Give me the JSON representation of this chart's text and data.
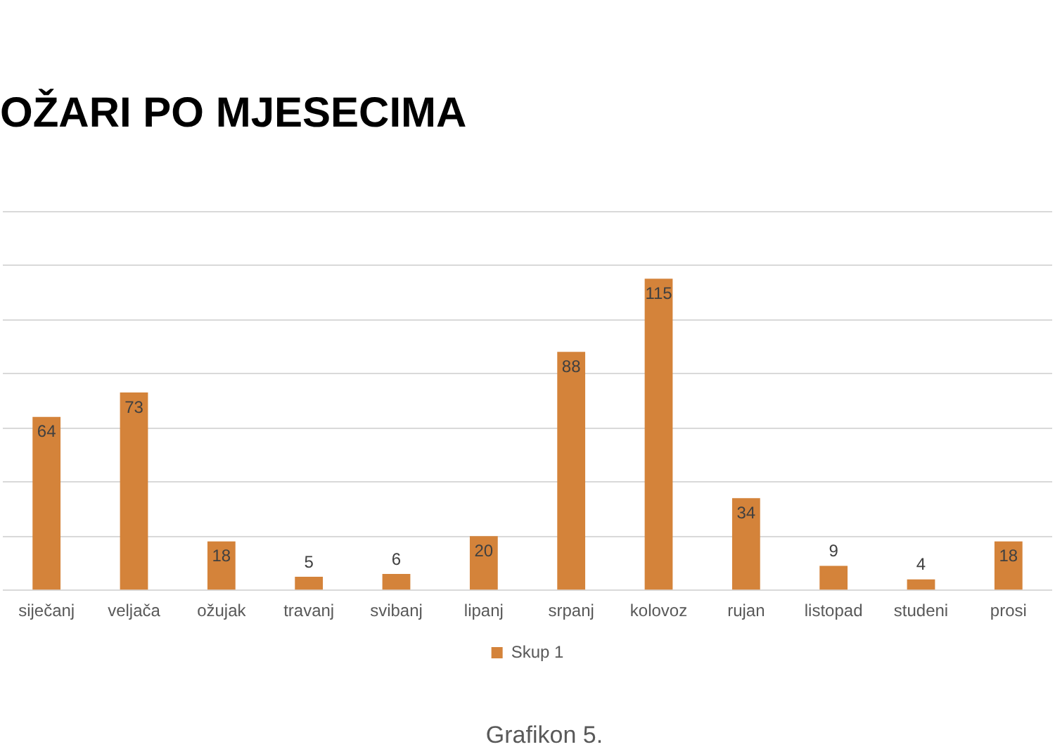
{
  "chart_data": {
    "type": "bar",
    "title": "OŽARI PO MJESECIMA",
    "categories": [
      "siječanj",
      "veljača",
      "ožujak",
      "travanj",
      "svibanj",
      "lipanj",
      "srpanj",
      "kolovoz",
      "rujan",
      "listopad",
      "studeni",
      "prosi"
    ],
    "series": [
      {
        "name": "Skup 1",
        "color": "#d4833a",
        "values": [
          64,
          73,
          18,
          5,
          6,
          20,
          88,
          115,
          34,
          9,
          4,
          18
        ]
      }
    ],
    "ylim": [
      0,
      140
    ],
    "yticks": [
      {
        "value": 0,
        "label": null
      },
      {
        "value": 20,
        "label": null
      },
      {
        "value": 40,
        "label": null
      },
      {
        "value": 60,
        "label": null
      },
      {
        "value": 80,
        "label": null
      },
      {
        "value": 100,
        "label": null
      },
      {
        "value": 120,
        "label": null
      },
      {
        "value": 140,
        "label": null
      }
    ],
    "grid": "y",
    "tick_labels": "x",
    "data_labels": true,
    "legend": "bottom",
    "annotations": [
      "Grafikon 5."
    ]
  }
}
